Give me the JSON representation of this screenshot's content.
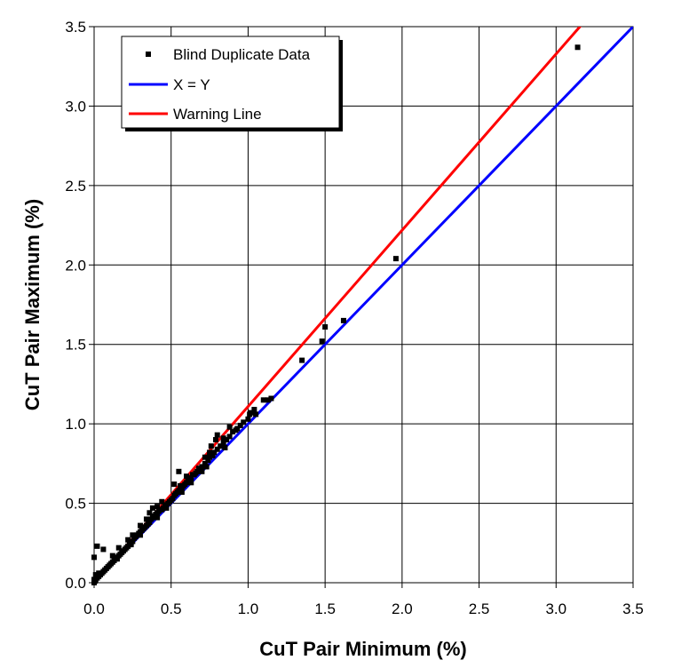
{
  "chart_data": {
    "type": "scatter",
    "xlabel": "CuT Pair Minimum (%)",
    "ylabel": "CuT Pair Maximum (%)",
    "xlim": [
      0,
      3.5
    ],
    "ylim": [
      0,
      3.5
    ],
    "xticks": [
      "0.0",
      "0.5",
      "1.0",
      "1.5",
      "2.0",
      "2.5",
      "3.0",
      "3.5"
    ],
    "yticks": [
      "0.0",
      "0.5",
      "1.0",
      "1.5",
      "2.0",
      "2.5",
      "3.0",
      "3.5"
    ],
    "grid": true,
    "legend_position": "top-left",
    "series": [
      {
        "name": "Blind Duplicate Data",
        "kind": "points",
        "color": "#000000",
        "points": [
          [
            0.0,
            0.0
          ],
          [
            0.005,
            0.01
          ],
          [
            0.01,
            0.02
          ],
          [
            0.02,
            0.03
          ],
          [
            0.03,
            0.04
          ],
          [
            0.04,
            0.05
          ],
          [
            0.05,
            0.06
          ],
          [
            0.06,
            0.07
          ],
          [
            0.07,
            0.08
          ],
          [
            0.08,
            0.09
          ],
          [
            0.09,
            0.1
          ],
          [
            0.1,
            0.11
          ],
          [
            0.11,
            0.12
          ],
          [
            0.12,
            0.13
          ],
          [
            0.13,
            0.14
          ],
          [
            0.14,
            0.15
          ],
          [
            0.15,
            0.16
          ],
          [
            0.16,
            0.17
          ],
          [
            0.17,
            0.18
          ],
          [
            0.18,
            0.19
          ],
          [
            0.19,
            0.2
          ],
          [
            0.2,
            0.21
          ],
          [
            0.21,
            0.22
          ],
          [
            0.22,
            0.23
          ],
          [
            0.23,
            0.24
          ],
          [
            0.24,
            0.25
          ],
          [
            0.25,
            0.26
          ],
          [
            0.26,
            0.28
          ],
          [
            0.27,
            0.29
          ],
          [
            0.28,
            0.3
          ],
          [
            0.29,
            0.31
          ],
          [
            0.3,
            0.32
          ],
          [
            0.31,
            0.33
          ],
          [
            0.32,
            0.34
          ],
          [
            0.33,
            0.35
          ],
          [
            0.34,
            0.36
          ],
          [
            0.35,
            0.37
          ],
          [
            0.36,
            0.38
          ],
          [
            0.37,
            0.4
          ],
          [
            0.38,
            0.41
          ],
          [
            0.39,
            0.42
          ],
          [
            0.4,
            0.43
          ],
          [
            0.41,
            0.44
          ],
          [
            0.42,
            0.45
          ],
          [
            0.43,
            0.46
          ],
          [
            0.44,
            0.46
          ],
          [
            0.45,
            0.47
          ],
          [
            0.46,
            0.48
          ],
          [
            0.47,
            0.49
          ],
          [
            0.48,
            0.5
          ],
          [
            0.49,
            0.51
          ],
          [
            0.5,
            0.52
          ],
          [
            0.51,
            0.53
          ],
          [
            0.52,
            0.55
          ],
          [
            0.53,
            0.56
          ],
          [
            0.54,
            0.57
          ],
          [
            0.55,
            0.58
          ],
          [
            0.56,
            0.59
          ],
          [
            0.57,
            0.6
          ],
          [
            0.58,
            0.61
          ],
          [
            0.59,
            0.62
          ],
          [
            0.6,
            0.63
          ],
          [
            0.61,
            0.64
          ],
          [
            0.62,
            0.65
          ],
          [
            0.63,
            0.66
          ],
          [
            0.65,
            0.68
          ],
          [
            0.66,
            0.69
          ],
          [
            0.67,
            0.7
          ],
          [
            0.68,
            0.71
          ],
          [
            0.7,
            0.73
          ],
          [
            0.72,
            0.75
          ],
          [
            0.74,
            0.77
          ],
          [
            0.75,
            0.79
          ],
          [
            0.77,
            0.8
          ],
          [
            0.78,
            0.82
          ],
          [
            0.8,
            0.84
          ],
          [
            0.82,
            0.86
          ],
          [
            0.84,
            0.88
          ],
          [
            0.86,
            0.9
          ],
          [
            0.88,
            0.92
          ],
          [
            0.9,
            0.95
          ],
          [
            0.93,
            0.97
          ],
          [
            0.95,
            0.99
          ],
          [
            0.97,
            1.01
          ],
          [
            1.0,
            1.03
          ],
          [
            1.02,
            1.07
          ],
          [
            1.04,
            1.09
          ],
          [
            1.1,
            1.15
          ],
          [
            1.13,
            1.15
          ],
          [
            1.15,
            1.16
          ],
          [
            1.35,
            1.4
          ],
          [
            1.48,
            1.52
          ],
          [
            1.5,
            1.61
          ],
          [
            1.62,
            1.65
          ],
          [
            1.96,
            2.04
          ],
          [
            3.14,
            3.37
          ],
          [
            0.0,
            0.16
          ],
          [
            0.02,
            0.23
          ],
          [
            0.06,
            0.21
          ],
          [
            0.0,
            0.02
          ],
          [
            0.01,
            0.05
          ],
          [
            0.03,
            0.06
          ],
          [
            0.12,
            0.17
          ],
          [
            0.16,
            0.22
          ],
          [
            0.22,
            0.27
          ],
          [
            0.25,
            0.3
          ],
          [
            0.3,
            0.36
          ],
          [
            0.34,
            0.4
          ],
          [
            0.36,
            0.44
          ],
          [
            0.38,
            0.47
          ],
          [
            0.41,
            0.48
          ],
          [
            0.44,
            0.51
          ],
          [
            0.52,
            0.62
          ],
          [
            0.55,
            0.7
          ],
          [
            0.56,
            0.61
          ],
          [
            0.6,
            0.67
          ],
          [
            0.64,
            0.68
          ],
          [
            0.68,
            0.72
          ],
          [
            0.72,
            0.79
          ],
          [
            0.75,
            0.82
          ],
          [
            0.76,
            0.86
          ],
          [
            0.79,
            0.9
          ],
          [
            0.8,
            0.93
          ],
          [
            0.84,
            0.91
          ],
          [
            0.88,
            0.98
          ],
          [
            0.92,
            0.96
          ],
          [
            1.01,
            1.06
          ],
          [
            1.05,
            1.06
          ],
          [
            0.47,
            0.47
          ],
          [
            0.57,
            0.57
          ],
          [
            0.63,
            0.63
          ],
          [
            0.7,
            0.7
          ],
          [
            0.73,
            0.73
          ],
          [
            0.85,
            0.85
          ],
          [
            0.3,
            0.3
          ],
          [
            0.15,
            0.15
          ],
          [
            0.24,
            0.24
          ],
          [
            0.41,
            0.41
          ]
        ]
      },
      {
        "name": "X = Y",
        "kind": "line",
        "color": "#0000ff",
        "points": [
          [
            0,
            0
          ],
          [
            3.5,
            3.5
          ]
        ]
      },
      {
        "name": "Warning Line",
        "kind": "line",
        "color": "#ff0000",
        "points": [
          [
            0,
            0
          ],
          [
            3.2,
            3.55
          ]
        ]
      }
    ]
  }
}
